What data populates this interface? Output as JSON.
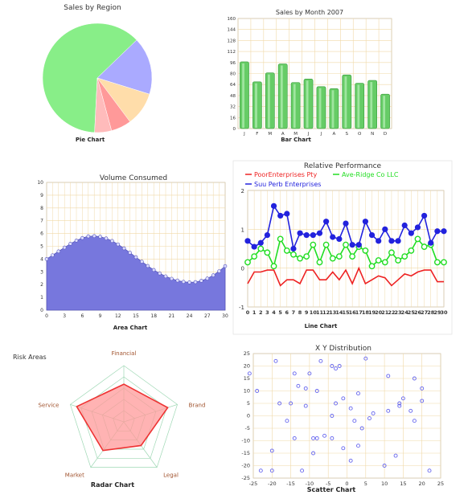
{
  "chart_data": [
    {
      "type": "pie",
      "title": "Sales by Region",
      "caption": "Pie Chart",
      "slices": [
        {
          "value": 62,
          "color": "#88ee88"
        },
        {
          "value": 17,
          "color": "#aaaaff"
        },
        {
          "value": 10,
          "color": "#ffddaa"
        },
        {
          "value": 6,
          "color": "#ff9999"
        },
        {
          "value": 5,
          "color": "#ffbbbb"
        }
      ]
    },
    {
      "type": "bar",
      "title": "Sales by Month 2007",
      "caption": "Bar  Chart",
      "categories": [
        "J",
        "F",
        "M",
        "A",
        "M",
        "J",
        "J",
        "A",
        "S",
        "O",
        "N",
        "D"
      ],
      "values": [
        97,
        68,
        81,
        94,
        67,
        72,
        61,
        58,
        78,
        66,
        70,
        50
      ],
      "ylim": [
        0,
        160
      ],
      "yticks": [
        0,
        16,
        32,
        48,
        64,
        80,
        96,
        112,
        128,
        144,
        160
      ],
      "color": "#66cc66"
    },
    {
      "type": "area",
      "title": "Volume Consumed",
      "caption": "Area Chart",
      "x": [
        0,
        1,
        2,
        3,
        4,
        5,
        6,
        7,
        8,
        9,
        10,
        11,
        12,
        13,
        14,
        15,
        16,
        17,
        18,
        19,
        20,
        21,
        22,
        23,
        24,
        25,
        26,
        27,
        28,
        29,
        30
      ],
      "values": [
        4.0,
        4.3,
        4.6,
        4.9,
        5.2,
        5.45,
        5.65,
        5.78,
        5.8,
        5.75,
        5.62,
        5.42,
        5.15,
        4.84,
        4.5,
        4.15,
        3.8,
        3.46,
        3.15,
        2.88,
        2.65,
        2.46,
        2.32,
        2.22,
        2.18,
        2.2,
        2.3,
        2.48,
        2.73,
        3.05,
        3.45
      ],
      "ylim": [
        0,
        10
      ],
      "yticks": [
        0,
        1,
        2,
        3,
        4,
        5,
        6,
        7,
        8,
        9,
        10
      ],
      "xticks": [
        0,
        3,
        6,
        9,
        12,
        15,
        18,
        21,
        24,
        27,
        30
      ],
      "color": "#7777dd"
    },
    {
      "type": "line",
      "title": "Relative Performance",
      "caption": "Line Chart",
      "x": [
        "0",
        "1",
        "2",
        "3",
        "4",
        "5",
        "6",
        "7",
        "8",
        "9",
        "10",
        "11",
        "12",
        "13",
        "14",
        "15",
        "16",
        "17",
        "18",
        "19",
        "20",
        "21",
        "22",
        "23",
        "24",
        "25",
        "26",
        "27",
        "28",
        "29",
        "30"
      ],
      "ylim": [
        -1,
        2
      ],
      "yticks": [
        -1,
        0,
        1,
        2
      ],
      "series": [
        {
          "name": "PoorEnterprises Pty",
          "color": "#ee2222",
          "marker": "none",
          "values": [
            -0.4,
            -0.1,
            -0.1,
            -0.05,
            -0.05,
            -0.45,
            -0.3,
            -0.3,
            -0.4,
            -0.05,
            -0.05,
            -0.3,
            -0.3,
            -0.1,
            -0.3,
            -0.05,
            -0.4,
            0.0,
            -0.4,
            -0.3,
            -0.2,
            -0.25,
            -0.45,
            -0.3,
            -0.15,
            -0.2,
            -0.1,
            -0.05,
            -0.05,
            -0.35,
            -0.35
          ]
        },
        {
          "name": "Ave-Ridge Co LLC",
          "color": "#22dd22",
          "marker": "hollow",
          "values": [
            0.15,
            0.3,
            0.5,
            0.4,
            0.05,
            0.75,
            0.45,
            0.35,
            0.25,
            0.3,
            0.6,
            0.15,
            0.6,
            0.25,
            0.3,
            0.6,
            0.3,
            0.55,
            0.45,
            0.05,
            0.2,
            0.15,
            0.4,
            0.2,
            0.3,
            0.45,
            0.75,
            0.55,
            0.6,
            0.15,
            0.15
          ]
        },
        {
          "name": "Suu Perb Enterprises",
          "color": "#2222dd",
          "marker": "filled",
          "values": [
            0.7,
            0.55,
            0.65,
            0.85,
            1.6,
            1.35,
            1.4,
            0.5,
            0.9,
            0.85,
            0.85,
            0.9,
            1.2,
            0.8,
            0.75,
            1.15,
            0.6,
            0.6,
            1.2,
            0.85,
            0.7,
            1.0,
            0.7,
            0.7,
            1.1,
            0.9,
            1.05,
            1.35,
            0.65,
            0.95,
            0.95
          ]
        }
      ]
    },
    {
      "type": "radar",
      "title": "Risk Areas",
      "caption": "Radar  Chart",
      "axes": [
        "Financial",
        "Brand",
        "Legal",
        "Market",
        "Service"
      ],
      "values": [
        0.67,
        0.82,
        0.52,
        0.63,
        0.88
      ],
      "rings": 5,
      "color": "#ee3333"
    },
    {
      "type": "scatter",
      "title": "X Y Distribution",
      "caption": "Scatter  Chart",
      "xlim": [
        -25,
        25
      ],
      "ylim": [
        -25,
        25
      ],
      "xticks": [
        -25,
        -20,
        -15,
        -10,
        -5,
        0,
        5,
        10,
        15,
        20,
        25
      ],
      "yticks": [
        -25,
        -20,
        -15,
        -10,
        -5,
        0,
        5,
        10,
        15,
        20,
        25
      ],
      "color": "#6666ee",
      "points": [
        [
          -26,
          17
        ],
        [
          -24,
          10
        ],
        [
          -23,
          -22
        ],
        [
          -20,
          -22
        ],
        [
          -20,
          -14
        ],
        [
          -19,
          22
        ],
        [
          -18,
          5
        ],
        [
          -16,
          -2
        ],
        [
          -15,
          5
        ],
        [
          -14,
          17
        ],
        [
          -14,
          -9
        ],
        [
          -13,
          12
        ],
        [
          -12,
          -22
        ],
        [
          -11,
          11
        ],
        [
          -11,
          4
        ],
        [
          -10,
          17
        ],
        [
          -9,
          -9
        ],
        [
          -9,
          -15
        ],
        [
          -8,
          10
        ],
        [
          -8,
          -9
        ],
        [
          -7,
          22
        ],
        [
          -6,
          -8
        ],
        [
          -4,
          0
        ],
        [
          -4,
          -9
        ],
        [
          -4,
          20
        ],
        [
          -3,
          19
        ],
        [
          -3,
          5
        ],
        [
          -2,
          20
        ],
        [
          -1,
          7
        ],
        [
          -1,
          -13
        ],
        [
          1,
          -18
        ],
        [
          1,
          3
        ],
        [
          2,
          -2
        ],
        [
          3,
          -12
        ],
        [
          3,
          9
        ],
        [
          4,
          -5
        ],
        [
          5,
          23
        ],
        [
          6,
          -1
        ],
        [
          7,
          1
        ],
        [
          10,
          -20
        ],
        [
          11,
          2
        ],
        [
          11,
          16
        ],
        [
          13,
          -16
        ],
        [
          14,
          5
        ],
        [
          14,
          4
        ],
        [
          15,
          7
        ],
        [
          17,
          2
        ],
        [
          18,
          -2
        ],
        [
          18,
          15
        ],
        [
          20,
          11
        ],
        [
          20,
          6
        ],
        [
          22,
          -22
        ]
      ]
    }
  ]
}
